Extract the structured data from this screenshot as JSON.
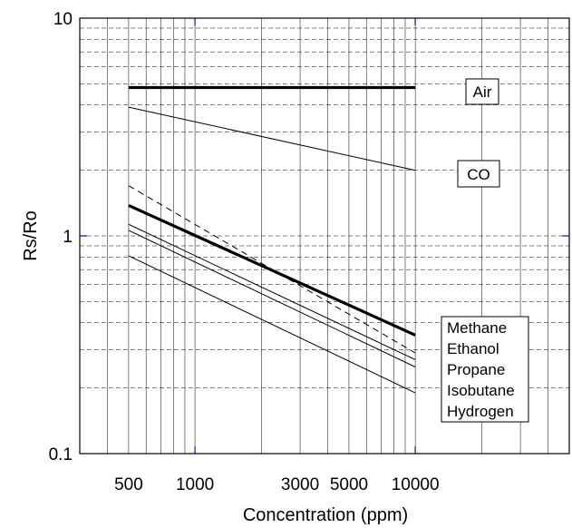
{
  "chart_data": {
    "type": "line",
    "x_scale": "log",
    "y_scale": "log",
    "xlabel": "Concentration (ppm)",
    "ylabel": "Rs/Ro",
    "xlim": [
      300,
      50000
    ],
    "ylim": [
      0.1,
      10
    ],
    "x_tick_labels": [
      {
        "value": 500,
        "label": "500"
      },
      {
        "value": 1000,
        "label": "1000"
      },
      {
        "value": 3000,
        "label": "3000"
      },
      {
        "value": 5000,
        "label": "5000"
      },
      {
        "value": 10000,
        "label": "10000"
      }
    ],
    "y_tick_labels": [
      {
        "value": 10,
        "label": "10"
      },
      {
        "value": 1,
        "label": "1"
      },
      {
        "value": 0.1,
        "label": "0.1"
      }
    ],
    "grid": true,
    "series": [
      {
        "name": "Air",
        "x": [
          500,
          10000
        ],
        "y": [
          4.8,
          4.8
        ],
        "style": "bold"
      },
      {
        "name": "CO",
        "x": [
          500,
          10000
        ],
        "y": [
          3.9,
          2.0
        ],
        "style": "thin"
      },
      {
        "x": [
          500,
          10000
        ],
        "y": [
          1.7,
          0.29
        ],
        "style": "dashed"
      },
      {
        "x": [
          500,
          10000
        ],
        "y": [
          1.38,
          0.35
        ],
        "style": "bold"
      },
      {
        "x": [
          500,
          10000
        ],
        "y": [
          1.13,
          0.27
        ],
        "style": "thin"
      },
      {
        "x": [
          500,
          10000
        ],
        "y": [
          1.06,
          0.25
        ],
        "style": "thin"
      },
      {
        "x": [
          500,
          10000
        ],
        "y": [
          0.81,
          0.19
        ],
        "style": "thin"
      }
    ],
    "labels": {
      "air": "Air",
      "co": "CO",
      "gas_legend": [
        "Methane",
        "Ethanol",
        "Propane",
        "Isobutane",
        "Hydrogen"
      ]
    }
  }
}
